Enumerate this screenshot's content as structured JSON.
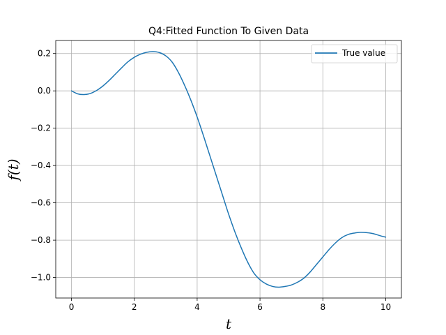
{
  "chart_data": {
    "type": "line",
    "title": "Q4:Fitted Function To Given Data",
    "xlabel": "t",
    "ylabel": "f(t)",
    "xlim": [
      -0.5,
      10.5
    ],
    "ylim": [
      -1.11,
      0.27
    ],
    "xticks": [
      0,
      2,
      4,
      6,
      8,
      10
    ],
    "xtick_labels": [
      "0",
      "2",
      "4",
      "6",
      "8",
      "10"
    ],
    "yticks": [
      0.2,
      0.0,
      -0.2,
      -0.4,
      -0.6,
      -0.8,
      -1.0
    ],
    "ytick_labels": [
      "0.2",
      "0.0",
      "−0.2",
      "−0.4",
      "−0.6",
      "−0.8",
      "−1.0"
    ],
    "grid": true,
    "legend": {
      "position": "top-right"
    },
    "series": [
      {
        "name": "True value",
        "color": "#1f77b4",
        "x": [
          0,
          0.2,
          0.4,
          0.6,
          0.8,
          1.0,
          1.2,
          1.4,
          1.6,
          1.8,
          2.0,
          2.2,
          2.4,
          2.6,
          2.8,
          3.0,
          3.2,
          3.4,
          3.6,
          3.8,
          4.0,
          4.2,
          4.4,
          4.6,
          4.8,
          5.0,
          5.2,
          5.4,
          5.6,
          5.8,
          6.0,
          6.2,
          6.4,
          6.6,
          6.8,
          7.0,
          7.2,
          7.4,
          7.6,
          7.8,
          8.0,
          8.2,
          8.4,
          8.6,
          8.8,
          9.0,
          9.2,
          9.4,
          9.6,
          9.8,
          10.0
        ],
        "y": [
          0.0,
          -0.016,
          -0.02,
          -0.014,
          0.002,
          0.026,
          0.056,
          0.09,
          0.124,
          0.156,
          0.18,
          0.197,
          0.207,
          0.21,
          0.205,
          0.188,
          0.155,
          0.1,
          0.03,
          -0.05,
          -0.14,
          -0.24,
          -0.345,
          -0.45,
          -0.555,
          -0.66,
          -0.755,
          -0.84,
          -0.915,
          -0.975,
          -1.012,
          -1.035,
          -1.048,
          -1.052,
          -1.048,
          -1.04,
          -1.025,
          -1.003,
          -0.97,
          -0.93,
          -0.89,
          -0.85,
          -0.815,
          -0.787,
          -0.77,
          -0.762,
          -0.758,
          -0.76,
          -0.765,
          -0.775,
          -0.784
        ]
      }
    ]
  }
}
